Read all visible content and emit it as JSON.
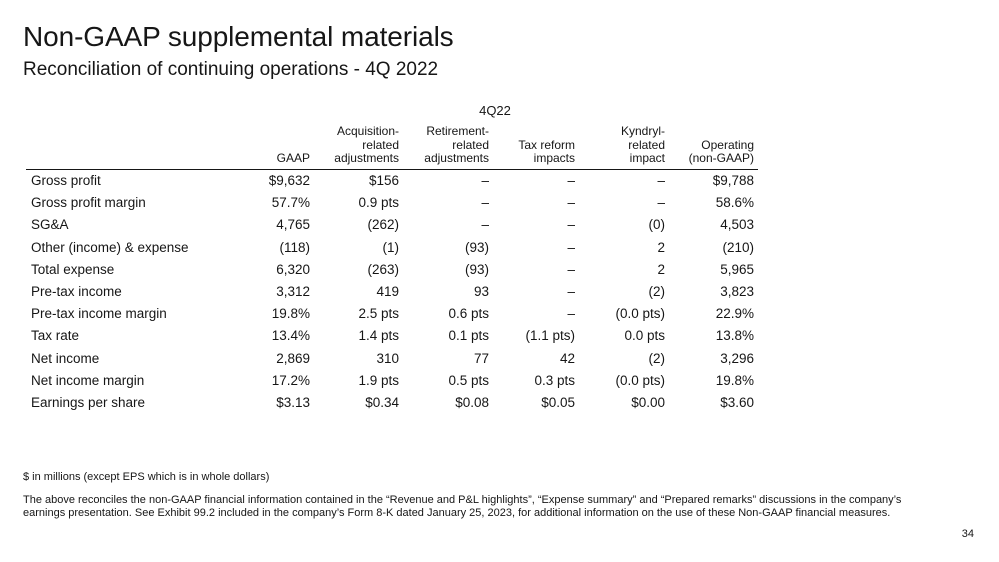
{
  "slide": {
    "title": "Non-GAAP supplemental materials",
    "subtitle": "Reconciliation of continuing operations - 4Q 2022",
    "period_label": "4Q22",
    "page_number": "34"
  },
  "table": {
    "columns": [
      {
        "line1": "",
        "line2": "",
        "line3": "GAAP"
      },
      {
        "line1": "Acquisition-",
        "line2": "related",
        "line3": "adjustments"
      },
      {
        "line1": "Retirement-",
        "line2": "related",
        "line3": "adjustments"
      },
      {
        "line1": "",
        "line2": "Tax reform",
        "line3": "impacts"
      },
      {
        "line1": "Kyndryl-",
        "line2": "related",
        "line3": "impact"
      },
      {
        "line1": "",
        "line2": "Operating",
        "line3": "(non-GAAP)"
      }
    ],
    "rows": [
      {
        "label": "Gross profit",
        "values": [
          "$9,632",
          "$156",
          "–",
          "–",
          "–",
          "$9,788"
        ]
      },
      {
        "label": "Gross profit margin",
        "values": [
          "57.7%",
          "0.9 pts",
          "–",
          "–",
          "–",
          "58.6%"
        ]
      },
      {
        "label": "SG&A",
        "values": [
          "4,765",
          "(262)",
          "–",
          "–",
          "(0)",
          "4,503"
        ]
      },
      {
        "label": "Other (income) & expense",
        "values": [
          "(118)",
          "(1)",
          "(93)",
          "–",
          "2",
          "(210)"
        ]
      },
      {
        "label": "Total expense",
        "values": [
          "6,320",
          "(263)",
          "(93)",
          "–",
          "2",
          "5,965"
        ]
      },
      {
        "label": "Pre-tax income",
        "values": [
          "3,312",
          "419",
          "93",
          "–",
          "(2)",
          "3,823"
        ]
      },
      {
        "label": "Pre-tax income margin",
        "values": [
          "19.8%",
          "2.5 pts",
          "0.6 pts",
          "–",
          "(0.0 pts)",
          "22.9%"
        ]
      },
      {
        "label": "Tax rate",
        "values": [
          "13.4%",
          "1.4 pts",
          "0.1 pts",
          "(1.1 pts)",
          "0.0 pts",
          "13.8%"
        ]
      },
      {
        "label": "Net income",
        "values": [
          "2,869",
          "310",
          "77",
          "42",
          "(2)",
          "3,296"
        ]
      },
      {
        "label": "Net income margin",
        "values": [
          "17.2%",
          "1.9 pts",
          "0.5 pts",
          "0.3 pts",
          "(0.0 pts)",
          "19.8%"
        ]
      },
      {
        "label": "Earnings per share",
        "values": [
          "$3.13",
          "$0.34",
          "$0.08",
          "$0.05",
          "$0.00",
          "$3.60"
        ]
      }
    ]
  },
  "footnotes": {
    "units": "$ in millions (except EPS which is in whole dollars)",
    "disclaimer": "The above reconciles the non-GAAP financial information contained in the “Revenue and P&L highlights”, “Expense summary” and “Prepared remarks” discussions in the company’s earnings presentation.  See Exhibit 99.2 included in the company’s Form 8-K dated January 25, 2023, for additional information on the use of these Non-GAAP financial measures."
  }
}
